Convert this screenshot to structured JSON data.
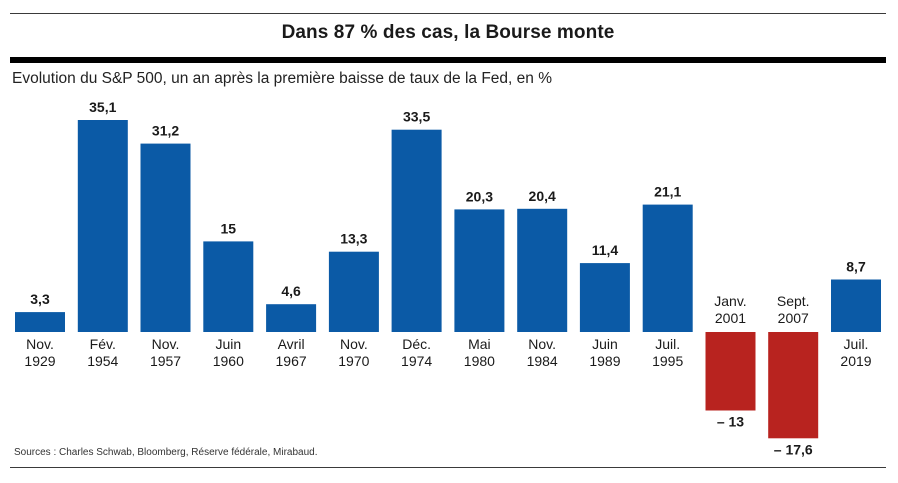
{
  "header": {
    "title": "Dans 87 % des cas, la Bourse monte",
    "subtitle": "Evolution du S&P 500, un an après la première baisse de taux de la Fed, en %"
  },
  "source": "Sources : Charles Schwab, Bloomberg, Réserve fédérale, Mirabaud.",
  "colors": {
    "positive": "#0b5aa6",
    "negative": "#b8231f"
  },
  "chart_data": {
    "type": "bar",
    "title": "Dans 87 % des cas, la Bourse monte",
    "subtitle": "Evolution du S&P 500, un an après la première baisse de taux de la Fed, en %",
    "categories": [
      [
        "Nov.",
        "1929"
      ],
      [
        "Fév.",
        "1954"
      ],
      [
        "Nov.",
        "1957"
      ],
      [
        "Juin",
        "1960"
      ],
      [
        "Avril",
        "1967"
      ],
      [
        "Nov.",
        "1970"
      ],
      [
        "Déc.",
        "1974"
      ],
      [
        "Mai",
        "1980"
      ],
      [
        "Nov.",
        "1984"
      ],
      [
        "Juin",
        "1989"
      ],
      [
        "Juil.",
        "1995"
      ],
      [
        "Janv.",
        "2001"
      ],
      [
        "Sept.",
        "2007"
      ],
      [
        "Juil.",
        "2019"
      ]
    ],
    "values": [
      3.3,
      35.1,
      31.2,
      15,
      4.6,
      13.3,
      33.5,
      20.3,
      20.4,
      11.4,
      21.1,
      -13,
      -17.6,
      8.7
    ],
    "value_labels": [
      "3,3",
      "35,1",
      "31,2",
      "15",
      "4,6",
      "13,3",
      "33,5",
      "20,3",
      "20,4",
      "11,4",
      "21,1",
      "– 13",
      "– 17,6",
      "8,7"
    ],
    "xlabel": "",
    "ylabel": "",
    "grid": false,
    "legend": false
  }
}
